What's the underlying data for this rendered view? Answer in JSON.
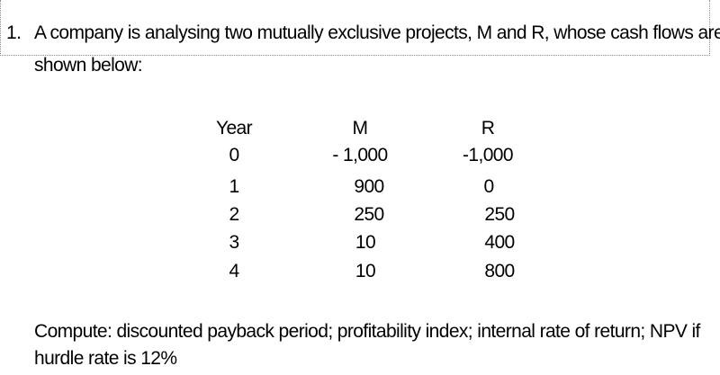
{
  "question": {
    "number": "1.",
    "intro_line1": "A company is analysing two mutually exclusive projects, M and R, whose cash flows are",
    "intro_line2": "shown below:",
    "compute_line1": "Compute: discounted payback period; profitability index; internal rate of return; NPV if",
    "compute_line2": "hurdle rate is 12%"
  },
  "table": {
    "headers": [
      "Year",
      "M",
      "R"
    ],
    "rows": [
      [
        "0",
        "- 1,000",
        "-1,000"
      ],
      [
        "1",
        "900",
        "0"
      ],
      [
        "2",
        "250",
        "250"
      ],
      [
        "3",
        "10",
        "400"
      ],
      [
        "4",
        "10",
        "800"
      ]
    ]
  }
}
